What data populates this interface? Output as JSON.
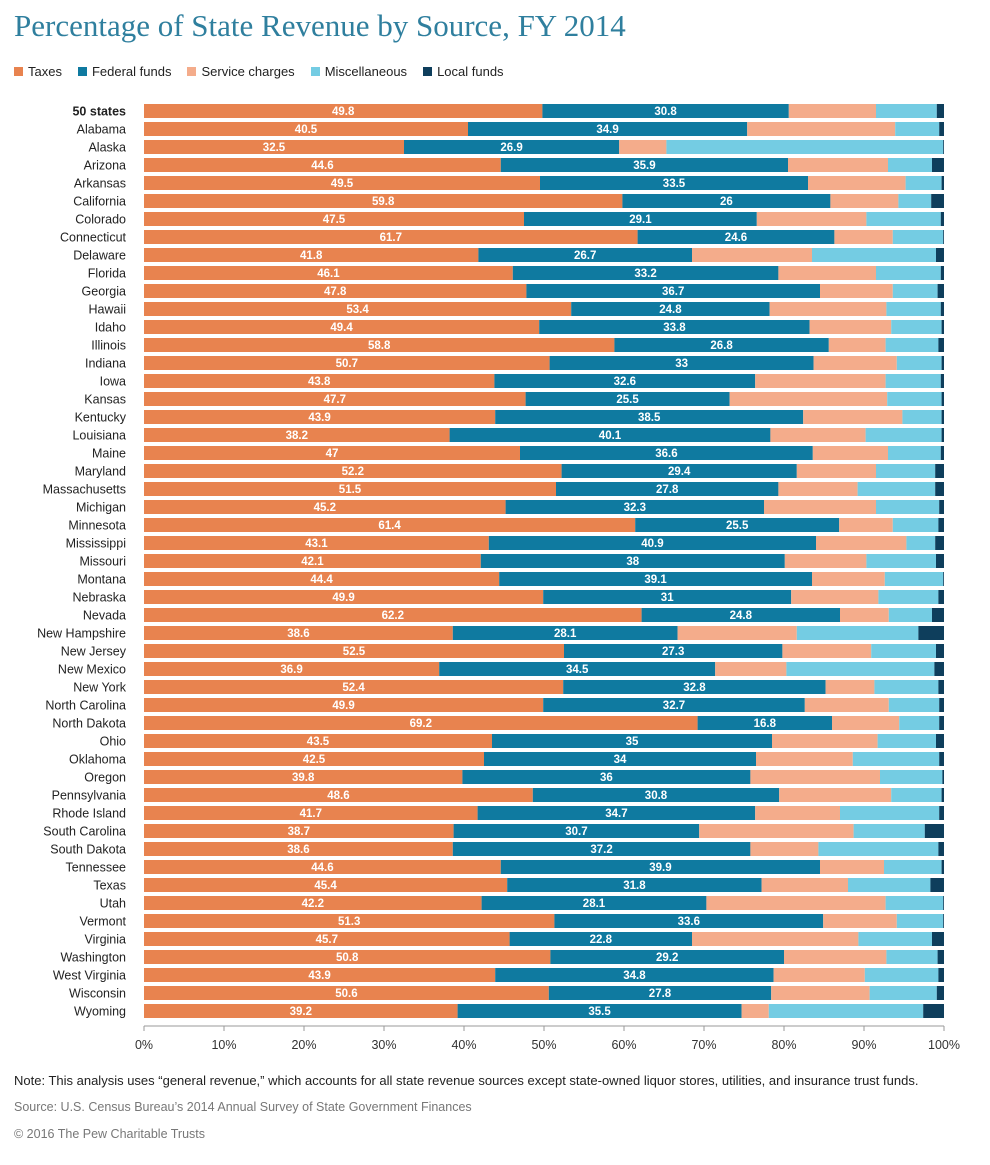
{
  "chart_data": {
    "type": "bar",
    "orientation": "horizontal",
    "stacked": true,
    "title": "Percentage of State Revenue by Source, FY 2014",
    "xlim": [
      0,
      100
    ],
    "xticks": [
      "0%",
      "10%",
      "20%",
      "30%",
      "40%",
      "50%",
      "60%",
      "70%",
      "80%",
      "90%",
      "100%"
    ],
    "legend_position": "top-left",
    "grid": false,
    "series": [
      {
        "name": "Taxes",
        "color": "#e8834f"
      },
      {
        "name": "Federal funds",
        "color": "#0f7aa0"
      },
      {
        "name": "Service charges",
        "color": "#f4ac8b"
      },
      {
        "name": "Miscellaneous",
        "color": "#74cce3"
      },
      {
        "name": "Local funds",
        "color": "#0e3e5c"
      }
    ],
    "rows": [
      {
        "label": "50 states",
        "bold": true,
        "values": [
          49.8,
          30.8,
          10.9,
          7.6,
          0.9
        ]
      },
      {
        "label": "Alabama",
        "values": [
          40.5,
          34.9,
          18.5,
          5.5,
          0.6
        ]
      },
      {
        "label": "Alaska",
        "values": [
          32.5,
          26.9,
          5.9,
          34.6,
          0.1
        ]
      },
      {
        "label": "Arizona",
        "values": [
          44.6,
          35.9,
          12.5,
          5.5,
          1.5
        ]
      },
      {
        "label": "Arkansas",
        "values": [
          49.5,
          33.5,
          12.2,
          4.5,
          0.3
        ]
      },
      {
        "label": "California",
        "values": [
          59.8,
          26,
          8.5,
          4.1,
          1.6
        ]
      },
      {
        "label": "Colorado",
        "values": [
          47.5,
          29.1,
          13.7,
          9.3,
          0.4
        ]
      },
      {
        "label": "Connecticut",
        "values": [
          61.7,
          24.6,
          7.3,
          6.3,
          0.1
        ]
      },
      {
        "label": "Delaware",
        "values": [
          41.8,
          26.7,
          15,
          15.5,
          1
        ]
      },
      {
        "label": "Florida",
        "values": [
          46.1,
          33.2,
          12.2,
          8.1,
          0.4
        ]
      },
      {
        "label": "Georgia",
        "values": [
          47.8,
          36.7,
          9.1,
          5.6,
          0.8
        ]
      },
      {
        "label": "Hawaii",
        "values": [
          53.4,
          24.8,
          14.6,
          6.8,
          0.4
        ]
      },
      {
        "label": "Idaho",
        "values": [
          49.4,
          33.8,
          10.2,
          6.3,
          0.3
        ]
      },
      {
        "label": "Illinois",
        "values": [
          58.8,
          26.8,
          7.1,
          6.6,
          0.7
        ]
      },
      {
        "label": "Indiana",
        "values": [
          50.7,
          33,
          10.4,
          5.6,
          0.3
        ]
      },
      {
        "label": "Iowa",
        "values": [
          43.8,
          32.6,
          16.3,
          6.9,
          0.4
        ]
      },
      {
        "label": "Kansas",
        "values": [
          47.7,
          25.5,
          19.7,
          6.8,
          0.3
        ]
      },
      {
        "label": "Kentucky",
        "values": [
          43.9,
          38.5,
          12.4,
          4.9,
          0.3
        ]
      },
      {
        "label": "Louisiana",
        "values": [
          38.2,
          40.1,
          11.9,
          9.5,
          0.3
        ]
      },
      {
        "label": "Maine",
        "values": [
          47,
          36.6,
          9.4,
          6.6,
          0.4
        ]
      },
      {
        "label": "Maryland",
        "values": [
          52.2,
          29.4,
          9.9,
          7.4,
          1.1
        ]
      },
      {
        "label": "Massachusetts",
        "values": [
          51.5,
          27.8,
          9.9,
          9.7,
          1.1
        ]
      },
      {
        "label": "Michigan",
        "values": [
          45.2,
          32.3,
          14,
          7.9,
          0.6
        ]
      },
      {
        "label": "Minnesota",
        "values": [
          61.4,
          25.5,
          6.7,
          5.7,
          0.7
        ]
      },
      {
        "label": "Mississippi",
        "values": [
          43.1,
          40.9,
          11.3,
          3.6,
          1.1
        ]
      },
      {
        "label": "Missouri",
        "values": [
          42.1,
          38,
          10.2,
          8.7,
          1
        ]
      },
      {
        "label": "Montana",
        "values": [
          44.4,
          39.1,
          9.1,
          7.3,
          0.1
        ]
      },
      {
        "label": "Nebraska",
        "values": [
          49.9,
          31,
          10.9,
          7.5,
          0.7
        ]
      },
      {
        "label": "Nevada",
        "values": [
          62.2,
          24.8,
          6.1,
          5.4,
          1.5
        ]
      },
      {
        "label": "New Hampshire",
        "values": [
          38.6,
          28.1,
          14.9,
          15.2,
          3.2
        ]
      },
      {
        "label": "New Jersey",
        "values": [
          52.5,
          27.3,
          11.1,
          8.1,
          1
        ]
      },
      {
        "label": "New Mexico",
        "values": [
          36.9,
          34.5,
          8.9,
          18.5,
          1.2
        ]
      },
      {
        "label": "New York",
        "values": [
          52.4,
          32.8,
          6.1,
          8,
          0.7
        ]
      },
      {
        "label": "North Carolina",
        "values": [
          49.9,
          32.7,
          10.5,
          6.3,
          0.6
        ]
      },
      {
        "label": "North Dakota",
        "values": [
          69.2,
          16.8,
          8.4,
          5,
          0.6
        ]
      },
      {
        "label": "Ohio",
        "values": [
          43.5,
          35,
          13.2,
          7.3,
          1
        ]
      },
      {
        "label": "Oklahoma",
        "values": [
          42.5,
          34,
          12.1,
          10.8,
          0.6
        ]
      },
      {
        "label": "Oregon",
        "values": [
          39.8,
          36,
          16.2,
          7.8,
          0.2
        ]
      },
      {
        "label": "Pennsylvania",
        "values": [
          48.6,
          30.8,
          14,
          6.3,
          0.3
        ]
      },
      {
        "label": "Rhode Island",
        "values": [
          41.7,
          34.7,
          10.6,
          12.4,
          0.6
        ]
      },
      {
        "label": "South Carolina",
        "values": [
          38.7,
          30.7,
          19.3,
          8.9,
          2.4
        ]
      },
      {
        "label": "South Dakota",
        "values": [
          38.6,
          37.2,
          8.5,
          15,
          0.7
        ]
      },
      {
        "label": "Tennessee",
        "values": [
          44.6,
          39.9,
          8,
          7.2,
          0.3
        ]
      },
      {
        "label": "Texas",
        "values": [
          45.4,
          31.8,
          10.8,
          10.3,
          1.7
        ]
      },
      {
        "label": "Utah",
        "values": [
          42.2,
          28.1,
          22.4,
          7.2,
          0.1
        ]
      },
      {
        "label": "Vermont",
        "values": [
          51.3,
          33.6,
          9.2,
          5.8,
          0.1
        ]
      },
      {
        "label": "Virginia",
        "values": [
          45.7,
          22.8,
          20.8,
          9.2,
          1.5
        ]
      },
      {
        "label": "Washington",
        "values": [
          50.8,
          29.2,
          12.8,
          6.4,
          0.8
        ]
      },
      {
        "label": "West Virginia",
        "values": [
          43.9,
          34.8,
          11.4,
          9.2,
          0.7
        ]
      },
      {
        "label": "Wisconsin",
        "values": [
          50.6,
          27.8,
          12.3,
          8.4,
          0.9
        ]
      },
      {
        "label": "Wyoming",
        "values": [
          39.2,
          35.5,
          3.4,
          19.3,
          2.6
        ]
      }
    ]
  },
  "note": "Note: This analysis uses “general revenue,” which accounts for all state revenue sources except state-owned liquor stores, utilities, and insurance trust funds.",
  "source": "Source: U.S. Census Bureau’s 2014 Annual Survey of State Government Finances",
  "copyright": "© 2016 The Pew Charitable Trusts"
}
